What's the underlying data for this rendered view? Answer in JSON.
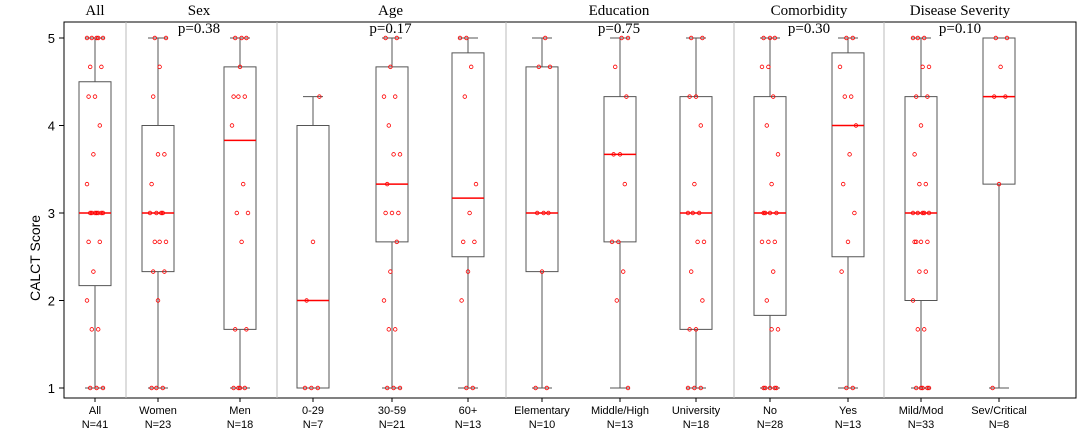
{
  "chart_data": {
    "type": "box",
    "ylabel": "CALCT Score",
    "ylim": [
      1,
      5
    ],
    "yticks": [
      1,
      2,
      3,
      4,
      5
    ],
    "median_color": "#ff0000",
    "point_color": "#ff0000",
    "box_color": "#555555",
    "groups": [
      {
        "title": "All",
        "pvalue": "",
        "boxes": [
          0
        ]
      },
      {
        "title": "Sex",
        "pvalue": "p=0.38",
        "boxes": [
          1,
          2
        ]
      },
      {
        "title": "Age",
        "pvalue": "p=0.17",
        "boxes": [
          3,
          4,
          5
        ]
      },
      {
        "title": "Education",
        "pvalue": "p=0.75",
        "boxes": [
          6,
          7,
          8
        ]
      },
      {
        "title": "Comorbidity",
        "pvalue": "p=0.30",
        "boxes": [
          9,
          10
        ]
      },
      {
        "title": "Disease Severity",
        "pvalue": "p=0.10",
        "boxes": [
          11,
          12
        ]
      }
    ],
    "boxes": [
      {
        "label": "All",
        "n": "N=41",
        "min": 1,
        "q1": 2.17,
        "median": 3,
        "q3": 4.5,
        "max": 5,
        "points": [
          5,
          5,
          5,
          5,
          5,
          4.67,
          4.67,
          4.33,
          4.33,
          4,
          3.67,
          3.33,
          3,
          3,
          3,
          3,
          3,
          3,
          3,
          2.67,
          2.67,
          2.33,
          2,
          1.67,
          1.67,
          1,
          1,
          1
        ]
      },
      {
        "label": "Women",
        "n": "N=23",
        "min": 1,
        "q1": 2.33,
        "median": 3,
        "q3": 4,
        "max": 5,
        "points": [
          5,
          5,
          4.67,
          4.33,
          3.67,
          3.67,
          3.33,
          3,
          3,
          3,
          3,
          2.67,
          2.67,
          2.67,
          2.33,
          2.33,
          2,
          1,
          1,
          1
        ]
      },
      {
        "label": "Men",
        "n": "N=18",
        "min": 1,
        "q1": 1.67,
        "median": 3.83,
        "q3": 4.67,
        "max": 5,
        "points": [
          5,
          5,
          5,
          4.67,
          4.33,
          4.33,
          4.33,
          4,
          3.33,
          3,
          3,
          2.67,
          1.67,
          1.67,
          1,
          1,
          1,
          1
        ]
      },
      {
        "label": "0-29",
        "n": "N=7",
        "min": 1,
        "q1": 1,
        "median": 2,
        "q3": 4,
        "max": 4.33,
        "points": [
          4.33,
          2.67,
          2,
          1,
          1,
          1
        ]
      },
      {
        "label": "30-59",
        "n": "N=21",
        "min": 1,
        "q1": 2.67,
        "median": 3.33,
        "q3": 4.67,
        "max": 5,
        "points": [
          5,
          5,
          4.67,
          4.33,
          4.33,
          4,
          3.67,
          3.67,
          3.33,
          3,
          3,
          3,
          2.67,
          2.33,
          2,
          1.67,
          1.67,
          1,
          1,
          1
        ]
      },
      {
        "label": "60+",
        "n": "N=13",
        "min": 1,
        "q1": 2.5,
        "median": 3.17,
        "q3": 4.83,
        "max": 5,
        "points": [
          5,
          5,
          4.67,
          4.33,
          3.33,
          3,
          2.67,
          2.67,
          2.33,
          2,
          1,
          1
        ]
      },
      {
        "label": "Elementary",
        "n": "N=10",
        "min": 1,
        "q1": 2.33,
        "median": 3,
        "q3": 4.67,
        "max": 5,
        "points": [
          5,
          4.67,
          4.67,
          3,
          3,
          3,
          2.33,
          1,
          1
        ]
      },
      {
        "label": "Middle/High",
        "n": "N=13",
        "min": 1,
        "q1": 2.67,
        "median": 3.67,
        "q3": 4.33,
        "max": 5,
        "points": [
          5,
          5,
          4.67,
          4.33,
          3.67,
          3.67,
          3.33,
          2.67,
          2.67,
          2.33,
          2,
          1
        ]
      },
      {
        "label": "University",
        "n": "N=18",
        "min": 1,
        "q1": 1.67,
        "median": 3,
        "q3": 4.33,
        "max": 5,
        "points": [
          5,
          5,
          4.33,
          4.33,
          4,
          3.33,
          3,
          3,
          3,
          2.67,
          2.67,
          2.33,
          2,
          1.67,
          1.67,
          1,
          1,
          1
        ]
      },
      {
        "label": "No",
        "n": "N=28",
        "min": 1,
        "q1": 1.83,
        "median": 3,
        "q3": 4.33,
        "max": 5,
        "points": [
          5,
          5,
          5,
          4.67,
          4.67,
          4.33,
          4,
          3.67,
          3.33,
          3,
          3,
          3,
          3,
          2.67,
          2.67,
          2.67,
          2.33,
          2,
          1.67,
          1.67,
          1,
          1,
          1,
          1,
          1
        ]
      },
      {
        "label": "Yes",
        "n": "N=13",
        "min": 1,
        "q1": 2.5,
        "median": 4,
        "q3": 4.83,
        "max": 5,
        "points": [
          5,
          5,
          4.67,
          4.33,
          4.33,
          4,
          3.67,
          3.33,
          3,
          2.67,
          2.33,
          1,
          1
        ]
      },
      {
        "label": "Mild/Mod",
        "n": "N=33",
        "min": 1,
        "q1": 2,
        "median": 3,
        "q3": 4.33,
        "max": 5,
        "points": [
          5,
          5,
          5,
          4.67,
          4.67,
          4.33,
          4.33,
          4,
          3.67,
          3.33,
          3.33,
          3,
          3,
          3,
          3,
          3,
          2.67,
          2.67,
          2.67,
          2.67,
          2.33,
          2.33,
          2,
          1.67,
          1.67,
          1,
          1,
          1,
          1,
          1
        ]
      },
      {
        "label": "Sev/Critical",
        "n": "N=8",
        "min": 1,
        "q1": 3.33,
        "median": 4.33,
        "q3": 5,
        "max": 5,
        "points": [
          5,
          5,
          4.67,
          4.33,
          4.33,
          3.33,
          1
        ]
      }
    ]
  }
}
